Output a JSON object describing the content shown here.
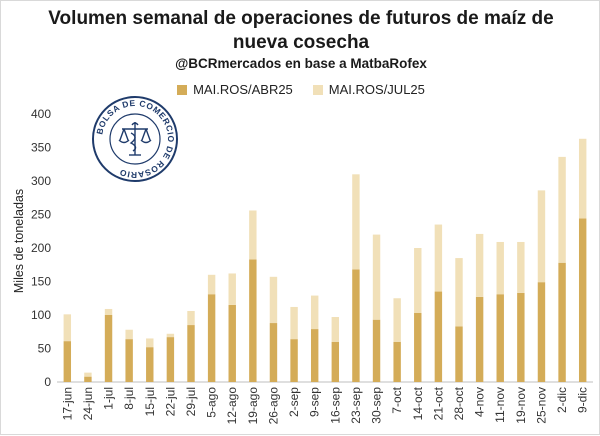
{
  "title_line1": "Volumen semanal de operaciones de futuros de maíz de",
  "title_line2": "nueva cosecha",
  "subtitle": "@BCRmercados en base a MatbaRofex",
  "seal": {
    "text": "BOLSA DE COMERCIO DE ROSARIO",
    "color": "#1f3b6b"
  },
  "chart_data": {
    "type": "bar",
    "stacked": true,
    "ylabel": "Miles de toneladas",
    "xlabel": "",
    "ylim": [
      0,
      400
    ],
    "yticks": [
      0,
      50,
      100,
      150,
      200,
      250,
      300,
      350,
      400
    ],
    "grid": false,
    "legend": "top",
    "categories": [
      "17-jun",
      "24-jun",
      "1-jul",
      "8-jul",
      "15-jul",
      "22-jul",
      "29-jul",
      "5-ago",
      "12-ago",
      "19-ago",
      "26-ago",
      "2-sep",
      "9-sep",
      "16-sep",
      "23-sep",
      "30-sep",
      "7-oct",
      "14-oct",
      "21-oct",
      "28-oct",
      "4-nov",
      "11-nov",
      "19-nov",
      "25-nov",
      "2-dic",
      "9-dic"
    ],
    "series": [
      {
        "name": "MAI.ROS/ABR25",
        "color": "#d4ac58",
        "values": [
          61,
          8,
          100,
          64,
          52,
          67,
          85,
          131,
          115,
          183,
          88,
          64,
          79,
          60,
          168,
          93,
          60,
          103,
          135,
          83,
          127,
          131,
          133,
          149,
          178,
          244
        ]
      },
      {
        "name": "MAI.ROS/JUL25",
        "color": "#f1e0b8",
        "values": [
          40,
          6,
          9,
          14,
          13,
          5,
          21,
          29,
          47,
          73,
          69,
          48,
          50,
          37,
          142,
          127,
          65,
          97,
          100,
          102,
          94,
          78,
          76,
          137,
          158,
          119
        ]
      }
    ]
  }
}
